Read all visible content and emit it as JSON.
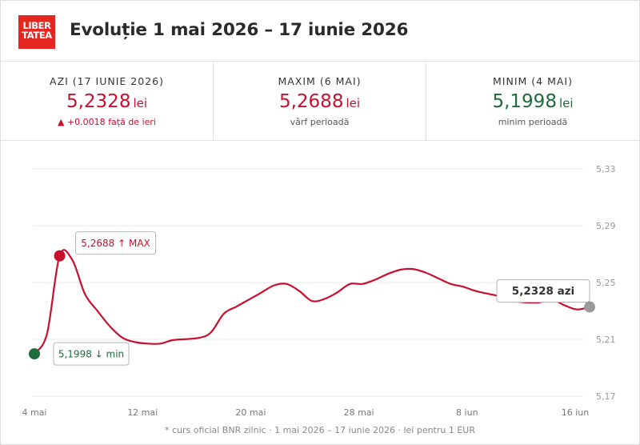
{
  "header": {
    "logo_line1": "LIBER",
    "logo_line2": "TATEA",
    "title": "Evoluție 1 mai 2026 – 17 iunie 2026"
  },
  "stats": [
    {
      "label": "AZI (17 IUNIE 2026)",
      "value": "5,2328",
      "unit": "lei",
      "note": "▲ +0.0018 față de ieri",
      "color": "#c8102e"
    },
    {
      "label": "MAXIM (6 MAI)",
      "value": "5,2688",
      "unit": "lei",
      "note": "vârf perioadă",
      "color": "#c8102e"
    },
    {
      "label": "MINIM (4 MAI)",
      "value": "5,1998",
      "unit": "lei",
      "note": "minim perioadă",
      "color": "#1e6b3c"
    }
  ],
  "chart_data": {
    "type": "line",
    "x_tick_labels": [
      "4 mai",
      "12 mai",
      "20 mai",
      "28 mai",
      "8 iun",
      "16 iun"
    ],
    "y_tick_labels": [
      "5,33",
      "5,29",
      "5,25",
      "5,21",
      "5,17"
    ],
    "ylim": [
      5.17,
      5.33
    ],
    "grid": true,
    "series": [
      {
        "color": "#c8102e",
        "points": [
          {
            "x": "2026-05-04",
            "y": 5.1998
          },
          {
            "x": "2026-05-05",
            "y": 5.214
          },
          {
            "x": "2026-05-06",
            "y": 5.2688
          },
          {
            "x": "2026-05-07",
            "y": 5.266
          },
          {
            "x": "2026-05-08",
            "y": 5.242
          },
          {
            "x": "2026-05-09",
            "y": 5.23
          },
          {
            "x": "2026-05-10",
            "y": 5.219
          },
          {
            "x": "2026-05-11",
            "y": 5.211
          },
          {
            "x": "2026-05-12",
            "y": 5.208
          },
          {
            "x": "2026-05-13",
            "y": 5.207
          },
          {
            "x": "2026-05-14",
            "y": 5.207
          },
          {
            "x": "2026-05-15",
            "y": 5.2095
          },
          {
            "x": "2026-05-17",
            "y": 5.211
          },
          {
            "x": "2026-05-18",
            "y": 5.215
          },
          {
            "x": "2026-05-19",
            "y": 5.228
          },
          {
            "x": "2026-05-20",
            "y": 5.233
          },
          {
            "x": "2026-05-21",
            "y": 5.238
          },
          {
            "x": "2026-05-22",
            "y": 5.243
          },
          {
            "x": "2026-05-23",
            "y": 5.248
          },
          {
            "x": "2026-05-24",
            "y": 5.249
          },
          {
            "x": "2026-05-25",
            "y": 5.244
          },
          {
            "x": "2026-05-26",
            "y": 5.237
          },
          {
            "x": "2026-05-27",
            "y": 5.2385
          },
          {
            "x": "2026-05-28",
            "y": 5.243
          },
          {
            "x": "2026-05-29",
            "y": 5.249
          },
          {
            "x": "2026-05-30",
            "y": 5.249
          },
          {
            "x": "2026-05-31",
            "y": 5.252
          },
          {
            "x": "2026-06-01",
            "y": 5.256
          },
          {
            "x": "2026-06-02",
            "y": 5.259
          },
          {
            "x": "2026-06-03",
            "y": 5.2595
          },
          {
            "x": "2026-06-04",
            "y": 5.257
          },
          {
            "x": "2026-06-05",
            "y": 5.253
          },
          {
            "x": "2026-06-06",
            "y": 5.249
          },
          {
            "x": "2026-06-07",
            "y": 5.247
          },
          {
            "x": "2026-06-08",
            "y": 5.244
          },
          {
            "x": "2026-06-10",
            "y": 5.24
          },
          {
            "x": "2026-06-11",
            "y": 5.237
          },
          {
            "x": "2026-06-12",
            "y": 5.236
          },
          {
            "x": "2026-06-13",
            "y": 5.236
          },
          {
            "x": "2026-06-14",
            "y": 5.238
          },
          {
            "x": "2026-06-15",
            "y": 5.234
          },
          {
            "x": "2026-06-16",
            "y": 5.231
          },
          {
            "x": "2026-06-17",
            "y": 5.2328
          }
        ]
      }
    ],
    "annotations": [
      {
        "text": "5,2688 ↑ MAX",
        "x": "2026-05-06",
        "y": 5.2688,
        "marker_color": "#c8102e",
        "text_color": "#c8102e"
      },
      {
        "text": "5,1998 ↓ min",
        "x": "2026-05-04",
        "y": 5.1998,
        "marker_color": "#1e6b3c",
        "text_color": "#1e6b3c"
      },
      {
        "text": "5,2328 azi",
        "x": "2026-06-17",
        "y": 5.2328,
        "marker_color": "#9a9a9a",
        "text_color": "#333333"
      }
    ],
    "footnote": "* curs oficial BNR zilnic · 1 mai 2026 – 17 iunie 2026 · lei pentru 1 EUR"
  }
}
